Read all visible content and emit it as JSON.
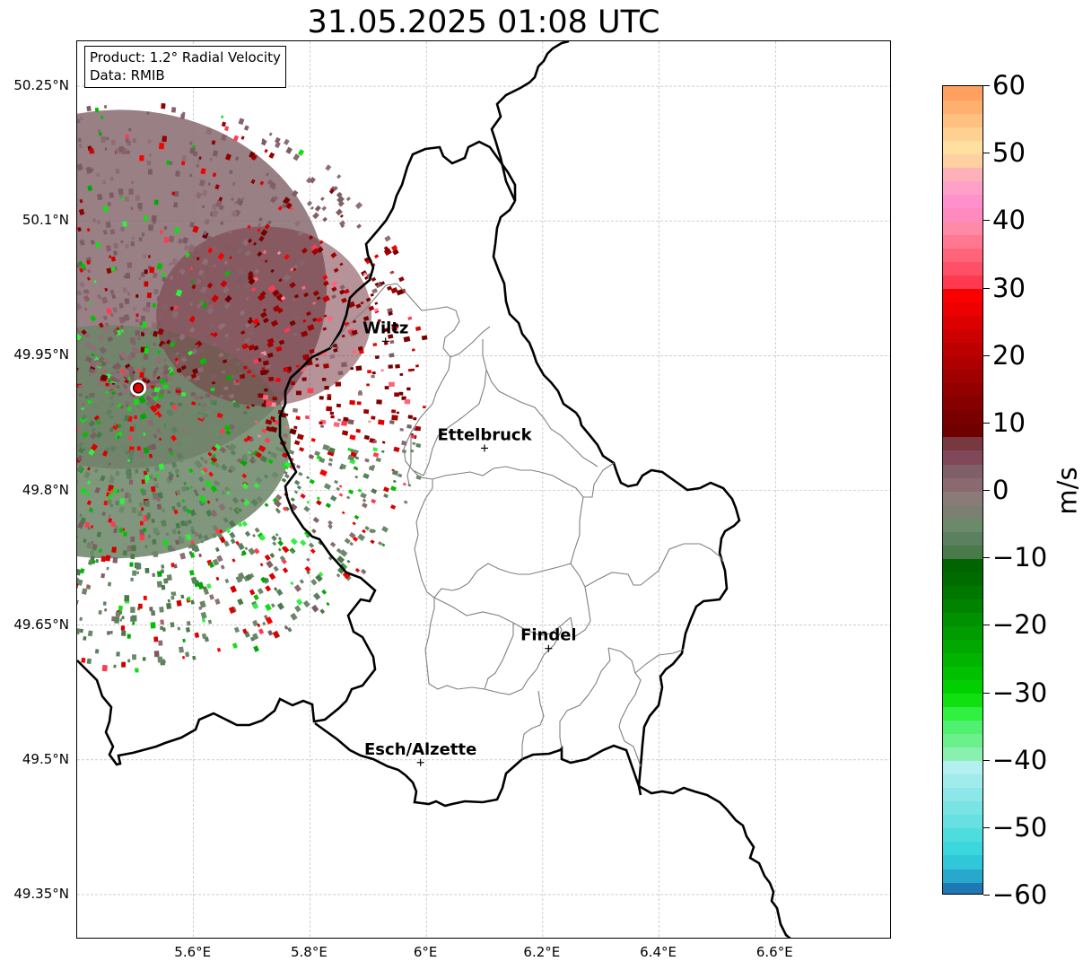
{
  "title": "31.05.2025 01:08 UTC",
  "info": {
    "product": "Product: 1.2° Radial Velocity",
    "data": "Data: RMIB"
  },
  "lat_ticks": [
    "50.25°N",
    "50.1°N",
    "49.95°N",
    "49.8°N",
    "49.65°N",
    "49.5°N",
    "49.35°N"
  ],
  "lon_ticks": [
    "5.6°E",
    "5.8°E",
    "6°E",
    "6.2°E",
    "6.4°E",
    "6.6°E"
  ],
  "cities": [
    {
      "name": "Wiltz",
      "lon": 5.93,
      "lat": 49.966
    },
    {
      "name": "Ettelbruck",
      "lon": 6.1,
      "lat": 49.847
    },
    {
      "name": "Findel",
      "lon": 6.21,
      "lat": 49.624
    },
    {
      "name": "Esch/Alzette",
      "lon": 5.99,
      "lat": 49.497
    }
  ],
  "radar_site": {
    "lon": 5.505,
    "lat": 49.914
  },
  "map_extent": {
    "lon": [
      5.4,
      6.8
    ],
    "lat": [
      49.3,
      50.3
    ]
  },
  "colorbar": {
    "unit": "m/s",
    "tick_labels": [
      "60",
      "50",
      "40",
      "30",
      "20",
      "10",
      "0",
      "−10",
      "−20",
      "−30",
      "−40",
      "−50",
      "−60"
    ],
    "range": [
      -60,
      60
    ],
    "colors": [
      "#1f78b4",
      "#28a8cc",
      "#30c8d8",
      "#3ad8dc",
      "#4fdcdc",
      "#66e0e0",
      "#7ae4e4",
      "#8ce8e8",
      "#a0ecec",
      "#b4f0f0",
      "#8af0b0",
      "#6cf08c",
      "#50f070",
      "#30f040",
      "#10e010",
      "#00d000",
      "#00c000",
      "#00b400",
      "#00a800",
      "#009c00",
      "#009000",
      "#008400",
      "#007800",
      "#006c00",
      "#006400",
      "#4a7a4a",
      "#5a8060",
      "#6a8a6a",
      "#7a8070",
      "#8a7a78",
      "#8a6a70",
      "#806068",
      "#804858",
      "#783840",
      "#700000",
      "#7a0000",
      "#860000",
      "#920000",
      "#a00000",
      "#ae0000",
      "#bc0000",
      "#cc0000",
      "#dc0000",
      "#ec0000",
      "#f80000",
      "#ff3a50",
      "#ff5068",
      "#ff6478",
      "#ff7890",
      "#ff8aa8",
      "#ff8ac0",
      "#ff90cc",
      "#ffa0c8",
      "#ffb0b8",
      "#ffd0a0",
      "#ffe0a0",
      "#ffd090",
      "#ffc080",
      "#ffb070",
      "#ffa060"
    ]
  }
}
